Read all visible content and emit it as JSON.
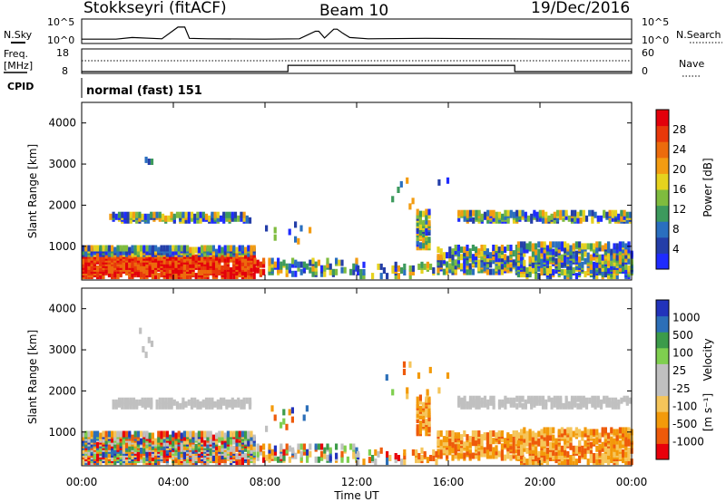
{
  "header": {
    "title": "Stokkseyri (fitACF)",
    "beam": "Beam 10",
    "date": "19/Dec/2016"
  },
  "colors": {
    "power_scale": [
      "#1f2bff",
      "#243ea8",
      "#2a6fbf",
      "#3d9a5d",
      "#7fbc3e",
      "#e6d21e",
      "#f39c12",
      "#ec6b0c",
      "#e8380a",
      "#e3000b"
    ],
    "velocity_scale": [
      "#e8000b",
      "#ee5a0a",
      "#f39a0a",
      "#f5c55a",
      "#c0c0c0",
      "#c0c0c0",
      "#7fcf4f",
      "#3c9b4a",
      "#2c6fb8",
      "#2233bb"
    ]
  },
  "chart_data": [
    {
      "type": "line",
      "panel": "noise",
      "ylabel_left": "N.Sky",
      "ylabel_right": "N.Search",
      "yticks_left": [
        "10^5",
        "10^0"
      ],
      "yticks_right": [
        "10^5",
        "10^0"
      ],
      "x_hours": [
        0,
        1.5,
        2.2,
        3.5,
        4.2,
        4.35,
        4.5,
        4.7,
        5.5,
        8.0,
        9.5,
        10.2,
        10.35,
        10.6,
        11.0,
        11.15,
        11.4,
        11.7,
        12.5,
        15.0,
        18.0,
        21.0,
        24.0
      ],
      "y_log": [
        0.6,
        0.6,
        1.0,
        0.7,
        3.5,
        3.5,
        3.5,
        0.8,
        0.7,
        0.6,
        0.7,
        2.5,
        2.5,
        0.9,
        3.0,
        3.0,
        2.0,
        1.0,
        0.7,
        0.8,
        0.7,
        0.6,
        0.6
      ]
    },
    {
      "type": "line",
      "panel": "frequency-nave",
      "ylabel_left_top": "Freq.",
      "ylabel_left_unit": "[MHz]",
      "ylabel_right": "Nave",
      "yticks_left": [
        "18",
        "8"
      ],
      "yticks_right": [
        "60",
        "0"
      ],
      "freq_change_hours": [
        9.0,
        18.9
      ],
      "freq_levels_mhz": [
        8,
        11,
        8
      ]
    },
    {
      "type": "text",
      "panel": "cpid",
      "label": "CPID",
      "value": "normal (fast) 151"
    },
    {
      "type": "heatmap",
      "panel": "power",
      "ylabel": "Slant Range [km]",
      "yticks": [
        "1000",
        "2000",
        "3000",
        "4000"
      ],
      "y_range_km": [
        180,
        4500
      ],
      "colorbar_label": "Power [dB]",
      "colorbar_ticks": [
        "4",
        "8",
        "12",
        "16",
        "20",
        "24",
        "28"
      ]
    },
    {
      "type": "heatmap",
      "panel": "velocity",
      "ylabel": "Slant Range [km]",
      "yticks": [
        "1000",
        "2000",
        "3000",
        "4000"
      ],
      "y_range_km": [
        180,
        4500
      ],
      "colorbar_label": "Velocity",
      "colorbar_unit": "[m s⁻¹]",
      "colorbar_ticks": [
        "1000",
        "500",
        "100",
        "25",
        "-25",
        "-100",
        "-500",
        "-1000"
      ]
    }
  ],
  "xaxis": {
    "label": "Time UT",
    "ticks": [
      "00:00",
      "04:00",
      "08:00",
      "12:00",
      "16:00",
      "20:00",
      "00:00"
    ]
  }
}
